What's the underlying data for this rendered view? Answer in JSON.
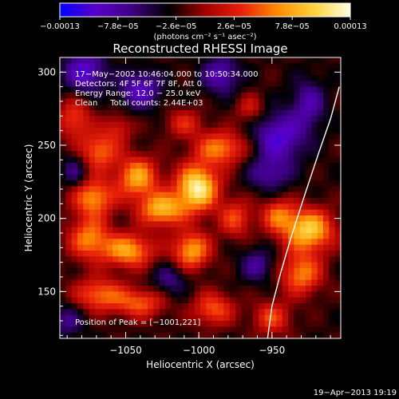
{
  "chart_data": {
    "type": "heatmap",
    "title": "Reconstructed RHESSI Image",
    "xlabel": "Heliocentric X (arcsec)",
    "ylabel": "Heliocentric Y (arcsec)",
    "xlim": [
      -1095,
      -903
    ],
    "ylim": [
      118,
      310
    ],
    "x_ticks": [
      -1050,
      -1000,
      -950
    ],
    "x_tick_labels": [
      "−1050",
      "−1000",
      "−950"
    ],
    "y_ticks": [
      150,
      200,
      250,
      300
    ],
    "y_tick_labels": [
      "150",
      "200",
      "250",
      "300"
    ],
    "colorbar": {
      "range": [
        -0.00013,
        0.00013
      ],
      "tick_labels": [
        "−0.00013",
        "−7.8e−05",
        "−2.6e−05",
        "2.6e−05",
        "7.8e−05",
        "0.00013"
      ],
      "units": "(photons cm⁻² s⁻¹ asec⁻²)",
      "colormap": [
        "#0000ff",
        "#5a00c8",
        "#3c0080",
        "#000000",
        "#a00000",
        "#e8200a",
        "#ff8c00",
        "#ffd23c",
        "#ffffe6"
      ]
    },
    "annotations": [
      "17−May−2002 10:46:04.000 to 10:50:34.000",
      "Detectors: 4F 5F 6F 7F 8F, Att 0",
      "Energy Range: 12.0 − 25.0 keV",
      "Clean     Total counts: 2.44E+03"
    ],
    "peak_label": "Position of Peak = [−1001,221]",
    "peak_position": [
      -1001,
      221
    ],
    "limb_color": "#ffffff",
    "sources": [
      {
        "x": -1001,
        "y": 221,
        "amp": 1.0,
        "sx": 10,
        "sy": 11
      },
      {
        "x": -1025,
        "y": 206,
        "amp": 0.75,
        "sx": 11,
        "sy": 8
      },
      {
        "x": -1042,
        "y": 228,
        "amp": 0.7,
        "sx": 10,
        "sy": 10
      },
      {
        "x": -1068,
        "y": 246,
        "amp": 0.55,
        "sx": 9,
        "sy": 9
      },
      {
        "x": -1072,
        "y": 214,
        "amp": 0.65,
        "sx": 10,
        "sy": 9
      },
      {
        "x": -985,
        "y": 248,
        "amp": 0.6,
        "sx": 12,
        "sy": 8
      },
      {
        "x": -1048,
        "y": 178,
        "amp": 0.7,
        "sx": 12,
        "sy": 8
      },
      {
        "x": -1005,
        "y": 178,
        "amp": 0.7,
        "sx": 9,
        "sy": 9
      },
      {
        "x": -1075,
        "y": 186,
        "amp": 0.6,
        "sx": 10,
        "sy": 10
      },
      {
        "x": -1068,
        "y": 148,
        "amp": 0.55,
        "sx": 12,
        "sy": 8
      },
      {
        "x": -1040,
        "y": 142,
        "amp": 0.5,
        "sx": 12,
        "sy": 7
      },
      {
        "x": -990,
        "y": 138,
        "amp": 0.5,
        "sx": 10,
        "sy": 8
      },
      {
        "x": -975,
        "y": 200,
        "amp": 0.45,
        "sx": 8,
        "sy": 9
      },
      {
        "x": -925,
        "y": 192,
        "amp": 0.85,
        "sx": 12,
        "sy": 10
      },
      {
        "x": -930,
        "y": 162,
        "amp": 0.6,
        "sx": 10,
        "sy": 10
      },
      {
        "x": -946,
        "y": 202,
        "amp": 0.5,
        "sx": 8,
        "sy": 8
      },
      {
        "x": -950,
        "y": 132,
        "amp": 0.45,
        "sx": 9,
        "sy": 8
      },
      {
        "x": -1085,
        "y": 268,
        "amp": 0.45,
        "sx": 8,
        "sy": 10
      },
      {
        "x": -1078,
        "y": 300,
        "amp": -0.55,
        "sx": 10,
        "sy": 10
      },
      {
        "x": -1040,
        "y": 288,
        "amp": -0.5,
        "sx": 10,
        "sy": 9
      },
      {
        "x": -985,
        "y": 298,
        "amp": -0.45,
        "sx": 9,
        "sy": 9
      },
      {
        "x": -945,
        "y": 255,
        "amp": -0.55,
        "sx": 12,
        "sy": 12
      },
      {
        "x": -952,
        "y": 230,
        "amp": -0.35,
        "sx": 10,
        "sy": 8
      },
      {
        "x": -925,
        "y": 278,
        "amp": -0.4,
        "sx": 8,
        "sy": 12
      },
      {
        "x": -1085,
        "y": 232,
        "amp": -0.3,
        "sx": 6,
        "sy": 8
      },
      {
        "x": -1020,
        "y": 158,
        "amp": -0.3,
        "sx": 8,
        "sy": 8
      },
      {
        "x": -960,
        "y": 168,
        "amp": -0.35,
        "sx": 8,
        "sy": 8
      },
      {
        "x": -1090,
        "y": 130,
        "amp": -0.3,
        "sx": 8,
        "sy": 8
      },
      {
        "x": -1010,
        "y": 265,
        "amp": 0.35,
        "sx": 9,
        "sy": 7
      },
      {
        "x": -1055,
        "y": 262,
        "amp": 0.3,
        "sx": 7,
        "sy": 7
      },
      {
        "x": -965,
        "y": 275,
        "amp": 0.3,
        "sx": 7,
        "sy": 7
      }
    ],
    "limb": {
      "points": [
        [
          -904,
          290
        ],
        [
          -910,
          268
        ],
        [
          -918,
          245
        ],
        [
          -928,
          215
        ],
        [
          -937,
          187
        ],
        [
          -944,
          163
        ],
        [
          -950,
          140
        ],
        [
          -953,
          118
        ]
      ]
    }
  },
  "footer_date": "19−Apr−2013 19:19"
}
